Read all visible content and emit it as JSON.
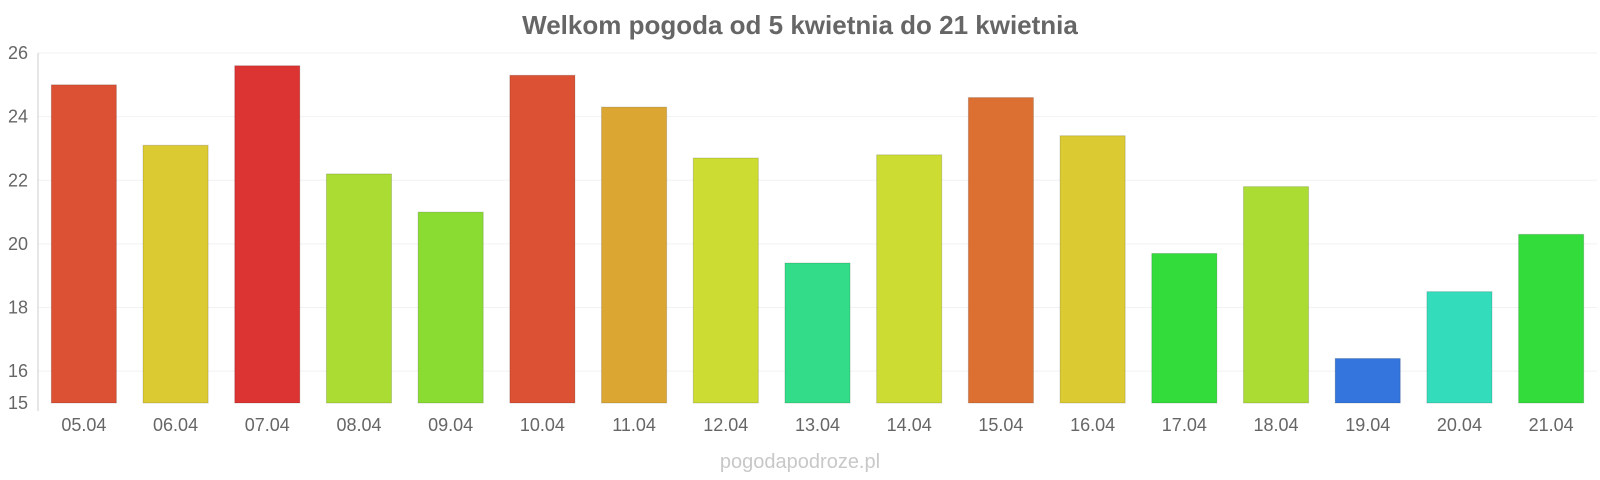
{
  "chart_data": {
    "type": "bar",
    "title": "Welkom pogoda od 5 kwietnia do 21 kwietnia",
    "xlabel": "",
    "ylabel": "",
    "categories": [
      "05.04",
      "06.04",
      "07.04",
      "08.04",
      "09.04",
      "10.04",
      "11.04",
      "12.04",
      "13.04",
      "14.04",
      "15.04",
      "16.04",
      "17.04",
      "18.04",
      "19.04",
      "20.04",
      "21.04"
    ],
    "values": [
      25.0,
      23.1,
      25.6,
      22.2,
      21.0,
      25.3,
      24.3,
      22.7,
      19.4,
      22.8,
      24.6,
      23.4,
      19.7,
      21.8,
      16.4,
      18.5,
      20.3
    ],
    "colors": [
      "#dc5033",
      "#dcca33",
      "#dc3333",
      "#abdc33",
      "#8adc33",
      "#dc5033",
      "#dca633",
      "#ccdc33",
      "#33dc88",
      "#ccdc33",
      "#dc7033",
      "#dcca33",
      "#33dc3a",
      "#abdc33",
      "#3375dc",
      "#33dcbb",
      "#33dc3a"
    ],
    "ylim": [
      15,
      26
    ],
    "yticks": [
      15,
      16,
      18,
      20,
      22,
      24,
      26
    ],
    "grid": true,
    "legend": "none"
  },
  "watermark": "pogodapodroze.pl"
}
